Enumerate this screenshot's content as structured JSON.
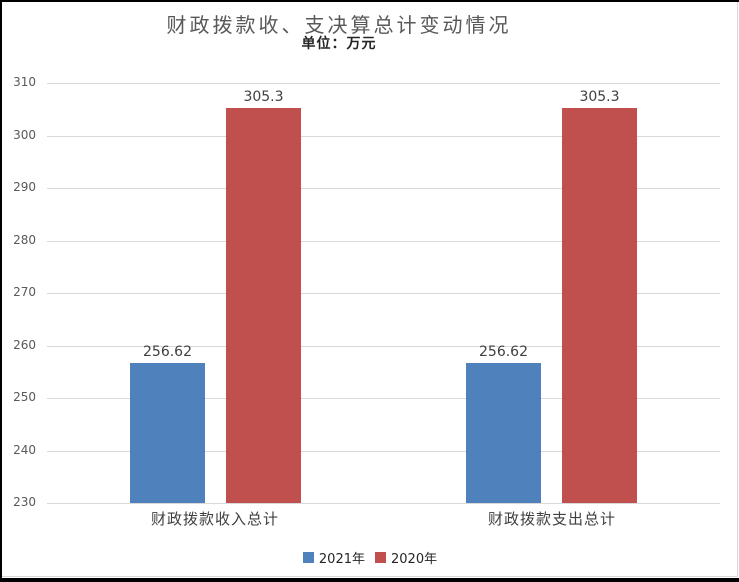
{
  "chart": {
    "title": "财政拨款收、支决算总计变动情况",
    "subtitle": "单位：万元"
  },
  "chart_data": {
    "type": "bar",
    "title": "财政拨款收、支决算总计变动情况",
    "subtitle": "单位：万元",
    "unit": "万元",
    "categories": [
      "财政拨款收入总计",
      "财政拨款支出总计"
    ],
    "series": [
      {
        "name": "2021年",
        "color": "#4F81BD",
        "values": [
          256.62,
          256.62
        ]
      },
      {
        "name": "2020年",
        "color": "#C0504D",
        "values": [
          305.3,
          305.3
        ]
      }
    ],
    "ylim": [
      230,
      310
    ],
    "yticks": [
      310,
      300,
      290,
      280,
      270,
      260,
      250,
      240,
      230
    ],
    "grid": true,
    "gridline_color": "#D9D9D9",
    "axis_label_color": "#595959",
    "legend_position": "bottom"
  }
}
